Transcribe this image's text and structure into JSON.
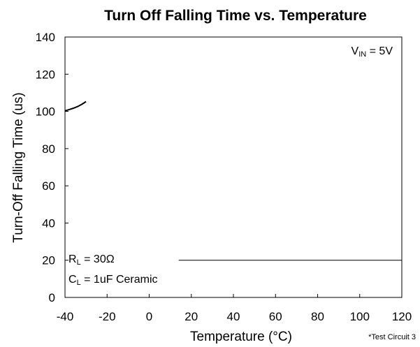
{
  "chart_data": {
    "type": "line",
    "title": "Turn Off Falling Time vs. Temperature",
    "xlabel": "Temperature (°C)",
    "ylabel": "Turn-Off Falling Time (us)",
    "xlim": [
      -40,
      120
    ],
    "ylim": [
      0,
      140
    ],
    "xticks": [
      -40,
      -20,
      0,
      20,
      40,
      60,
      80,
      100,
      120
    ],
    "yticks": [
      0,
      20,
      40,
      60,
      80,
      100,
      120,
      140
    ],
    "grid": false,
    "series": [
      {
        "x": [
          -40,
          -38,
          -36,
          -34,
          -32,
          -30
        ],
        "y": [
          100.3,
          101.0,
          101.7,
          102.6,
          103.8,
          105.3
        ]
      },
      {
        "x": [
          14,
          120
        ],
        "y": [
          20,
          20
        ]
      }
    ],
    "annotations": {
      "vin": {
        "main": "V",
        "sub": "IN",
        "rest": " = 5V"
      },
      "rl": {
        "main": "R",
        "sub": "L",
        "rest": " = 30Ω"
      },
      "cl": {
        "main": "C",
        "sub": "L",
        "rest": " = 1uF Ceramic"
      },
      "note": "*Test Circuit 3"
    }
  }
}
